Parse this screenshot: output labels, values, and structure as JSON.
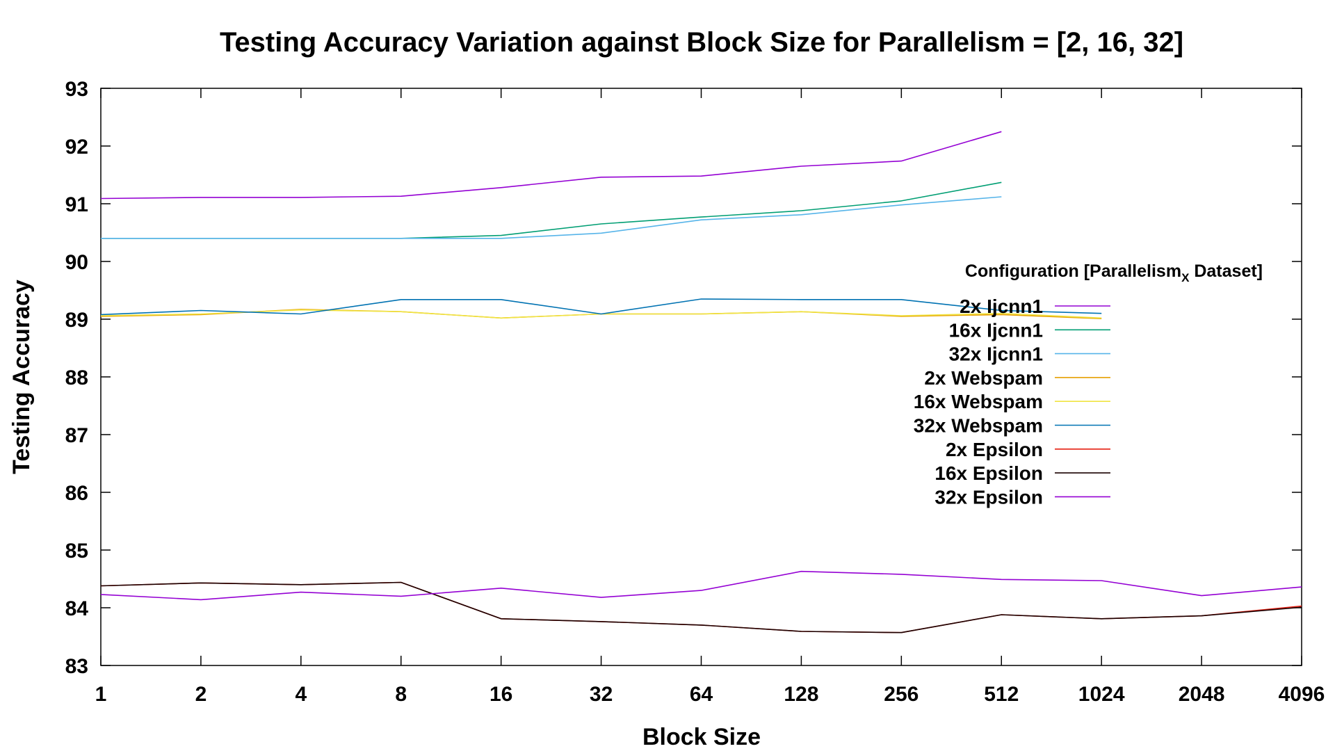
{
  "chart_data": {
    "type": "line",
    "title": "Testing  Accuracy Variation against Block Size for Parallelism = [2, 16, 32]",
    "xlabel": "Block Size",
    "ylabel": "Testing Accuracy",
    "x": [
      1,
      2,
      4,
      8,
      16,
      32,
      64,
      128,
      256,
      512,
      1024,
      2048,
      4096
    ],
    "x_scale": "log2",
    "x_tick_labels": [
      "1",
      "2",
      "4",
      "8",
      "16",
      "32",
      "64",
      "128",
      "256",
      "512",
      "1024",
      "2048",
      "4096"
    ],
    "ylim": [
      83,
      93
    ],
    "y_ticks": [
      83,
      84,
      85,
      86,
      87,
      88,
      89,
      90,
      91,
      92,
      93
    ],
    "grid": false,
    "legend": {
      "position": "right",
      "title_main": "Configuration [Parallelism",
      "title_sub": "X",
      "title_tail": " Dataset]"
    },
    "series": [
      {
        "name": "2x Ijcnn1",
        "color": "#9400d3",
        "values": [
          91.09,
          91.11,
          91.11,
          91.13,
          91.28,
          91.46,
          91.48,
          91.65,
          91.74,
          92.25,
          null,
          null,
          null
        ]
      },
      {
        "name": "16x Ijcnn1",
        "color": "#009e73",
        "values": [
          90.4,
          90.4,
          90.4,
          90.4,
          90.45,
          90.65,
          90.77,
          90.88,
          91.05,
          91.37,
          null,
          null,
          null
        ]
      },
      {
        "name": "32x Ijcnn1",
        "color": "#56b4e9",
        "values": [
          90.4,
          90.4,
          90.4,
          90.4,
          90.4,
          90.49,
          90.72,
          90.81,
          90.98,
          91.12,
          null,
          null,
          null
        ]
      },
      {
        "name": "2x Webspam",
        "color": "#e69f00",
        "values": [
          89.05,
          89.08,
          89.17,
          89.13,
          89.02,
          89.09,
          89.09,
          89.13,
          89.05,
          89.08,
          89.01,
          null,
          null
        ]
      },
      {
        "name": "16x Webspam",
        "color": "#f0e442",
        "values": [
          89.06,
          89.09,
          89.16,
          89.13,
          89.02,
          89.09,
          89.09,
          89.13,
          89.06,
          89.1,
          89.02,
          null,
          null
        ]
      },
      {
        "name": "32x Webspam",
        "color": "#0072b2",
        "values": [
          89.08,
          89.15,
          89.09,
          89.34,
          89.34,
          89.09,
          89.35,
          89.34,
          89.34,
          89.15,
          89.1,
          null,
          null
        ]
      },
      {
        "name": "2x Epsilon",
        "color": "#e51e10",
        "values": [
          84.38,
          84.43,
          84.4,
          84.44,
          83.81,
          83.76,
          83.7,
          83.59,
          83.57,
          83.88,
          83.81,
          83.86,
          84.03
        ]
      },
      {
        "name": "16x Epsilon",
        "color": "#1a0000",
        "values": [
          84.38,
          84.43,
          84.4,
          84.44,
          83.81,
          83.76,
          83.7,
          83.59,
          83.57,
          83.88,
          83.81,
          83.86,
          84.01
        ]
      },
      {
        "name": "32x Epsilon",
        "color": "#9400d3",
        "values": [
          84.23,
          84.14,
          84.27,
          84.2,
          84.34,
          84.18,
          84.3,
          84.63,
          84.58,
          84.49,
          84.47,
          84.21,
          84.36
        ]
      }
    ]
  }
}
